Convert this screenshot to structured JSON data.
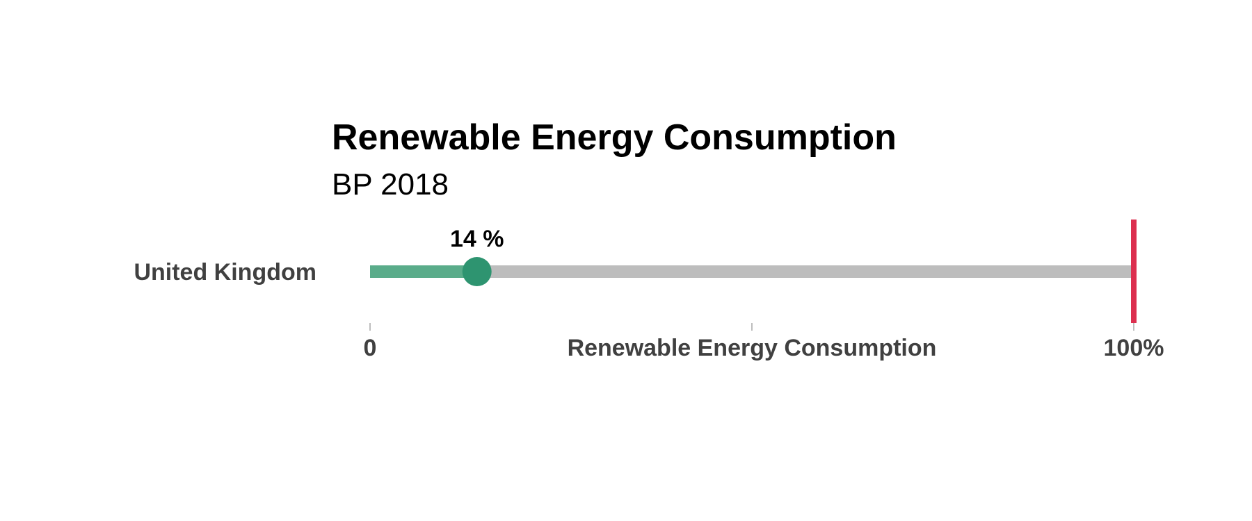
{
  "chart_data": {
    "type": "bar",
    "title": "Renewable Energy Consumption",
    "subtitle": "BP 2018",
    "xlabel": "Renewable Energy Consumption",
    "categories": [
      "United Kingdom"
    ],
    "values": [
      14
    ],
    "value_labels": [
      "14 %"
    ],
    "xlim": [
      0,
      100
    ],
    "target": 100,
    "ticks": [
      0,
      50,
      100
    ],
    "tick_labels": [
      "0",
      "",
      "100%"
    ],
    "grid": false,
    "legend": "none",
    "colors": {
      "fill": "#5aac8a",
      "dot": "#2e9470",
      "track": "#bdbdbd",
      "target": "#dc2f4f",
      "label": "#404040"
    }
  }
}
